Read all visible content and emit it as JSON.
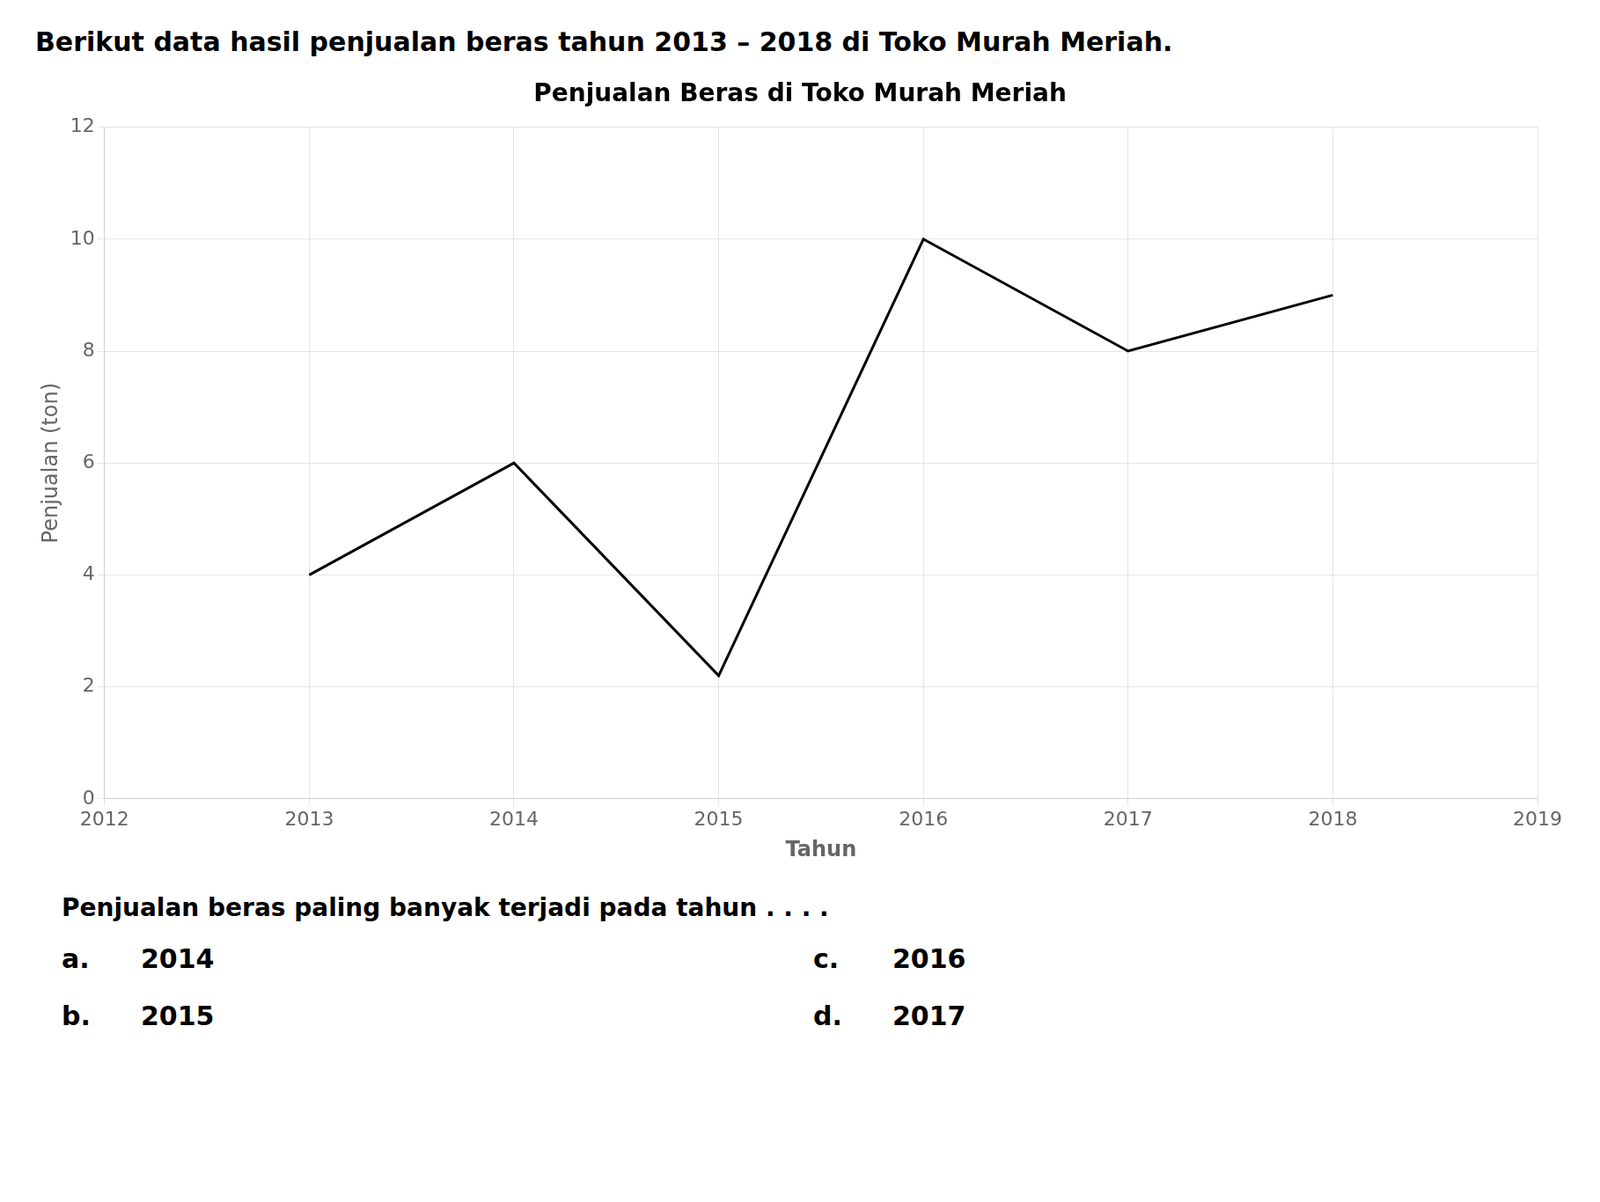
{
  "chart_data": {
    "type": "line",
    "header": "Berikut data hasil penjualan beras tahun 2013 – 2018 di Toko Murah Meriah.",
    "title": "Penjualan Beras di Toko Murah Meriah",
    "x_label": "Tahun",
    "y_label": "Penjualan (ton)",
    "x": [
      2013,
      2014,
      2015,
      2016,
      2017,
      2018
    ],
    "values": [
      4,
      6,
      2.2,
      10,
      8,
      9
    ],
    "color": "#000000",
    "xlim": [
      2012,
      2019
    ],
    "xticks": [
      2012,
      2013,
      2014,
      2015,
      2016,
      2017,
      2018,
      2019
    ],
    "ylim": [
      0,
      12
    ],
    "yticks": [
      0,
      2,
      4,
      6,
      8,
      10,
      12
    ],
    "grid": true,
    "question": "Penjualan beras paling banyak terjadi pada tahun . . . .",
    "options": [
      {
        "label": "a.",
        "value": "2014"
      },
      {
        "label": "b.",
        "value": "2015"
      },
      {
        "label": "c.",
        "value": "2016"
      },
      {
        "label": "d.",
        "value": "2017"
      }
    ]
  }
}
